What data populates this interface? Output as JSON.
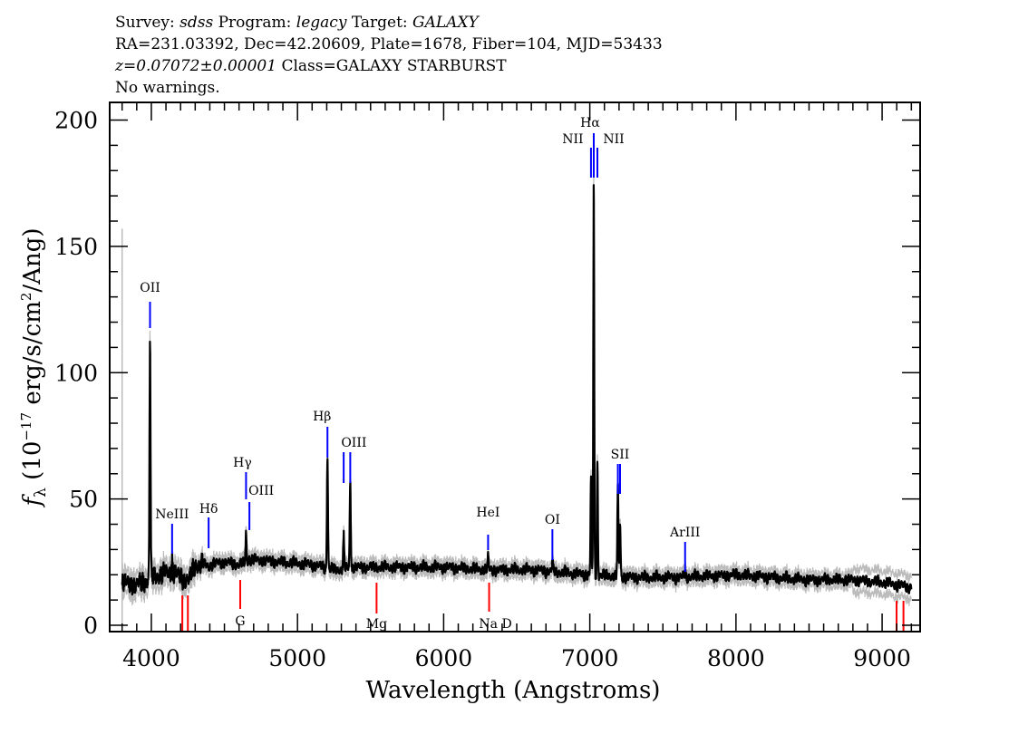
{
  "header": {
    "line1": {
      "survey_label": "Survey: ",
      "survey": "sdss",
      "program_label": " Program: ",
      "program": "legacy",
      "target_label": " Target: ",
      "target": "GALAXY"
    },
    "line2": "RA=231.03392, Dec=42.20609, Plate=1678, Fiber=104, MJD=53433",
    "line3": {
      "redshift": "z=0.07072±0.00001",
      "class": " Class=GALAXY STARBURST"
    },
    "line4": "No warnings."
  },
  "chart_data": {
    "type": "line",
    "xlabel": "Wavelength (Angstroms)",
    "ylabel": "f_λ (10^-17 erg/s/cm^2/Ang)",
    "ylabel_parts": {
      "f": "f",
      "sub": "λ",
      "pre": " (10",
      "exp1": "−17",
      "mid": " erg/s/cm",
      "exp2": "2",
      "post": "/Ang)"
    },
    "xlim": [
      3715,
      9260
    ],
    "ylim": [
      -2.5,
      207
    ],
    "xticks": [
      4000,
      5000,
      6000,
      7000,
      8000,
      9000
    ],
    "yticks": [
      0,
      50,
      100,
      150,
      200
    ],
    "grid": false,
    "colors": {
      "flux": "#000000",
      "error": "#bbbbbb",
      "emission_marker": "#0000ff",
      "absorption_marker": "#ff0000"
    },
    "continuum": [
      [
        3800,
        17
      ],
      [
        3900,
        16
      ],
      [
        3980,
        18
      ],
      [
        4050,
        20
      ],
      [
        4150,
        21
      ],
      [
        4200,
        19
      ],
      [
        4260,
        18
      ],
      [
        4300,
        24
      ],
      [
        4400,
        24
      ],
      [
        4500,
        25
      ],
      [
        4600,
        24
      ],
      [
        4700,
        26
      ],
      [
        4900,
        25
      ],
      [
        5100,
        24
      ],
      [
        5250,
        22
      ],
      [
        5400,
        23
      ],
      [
        5600,
        23
      ],
      [
        6000,
        23
      ],
      [
        6300,
        22
      ],
      [
        6600,
        22
      ],
      [
        7000,
        20
      ],
      [
        7300,
        19
      ],
      [
        7600,
        19
      ],
      [
        8000,
        20
      ],
      [
        8500,
        18
      ],
      [
        8800,
        18
      ],
      [
        9000,
        17
      ],
      [
        9200,
        15
      ]
    ],
    "emission_peaks": [
      [
        3991,
        112
      ],
      [
        4142,
        26
      ],
      [
        4392,
        23
      ],
      [
        4648,
        36
      ],
      [
        4671,
        27
      ],
      [
        5205,
        68
      ],
      [
        5316,
        35
      ],
      [
        5361,
        57
      ],
      [
        6304,
        27
      ],
      [
        6744,
        25
      ],
      [
        7008,
        58
      ],
      [
        7027,
        175
      ],
      [
        7052,
        65
      ],
      [
        7192,
        55
      ],
      [
        7207,
        40
      ],
      [
        7652,
        21
      ]
    ],
    "error_spike": [
      3800,
      157
    ],
    "emission_lines": [
      {
        "label": "OII",
        "wavelength": 3991
      },
      {
        "label": "NeIII",
        "wavelength": 4142
      },
      {
        "label": "Hδ",
        "wavelength": 4392
      },
      {
        "label": "Hγ",
        "wavelength": 4648
      },
      {
        "label": "OIII",
        "wavelength": 4671
      },
      {
        "label": "Hβ",
        "wavelength": 5205
      },
      {
        "label": "",
        "wavelength": 5316
      },
      {
        "label": "OIII",
        "wavelength": 5361
      },
      {
        "label": "HeI",
        "wavelength": 6304
      },
      {
        "label": "OI",
        "wavelength": 6744
      },
      {
        "label": "NII",
        "wavelength": 7008
      },
      {
        "label": "Hα",
        "wavelength": 7027
      },
      {
        "label": "NII",
        "wavelength": 7052
      },
      {
        "label": "",
        "wavelength": 7192
      },
      {
        "label": "SII",
        "wavelength": 7207
      },
      {
        "label": "ArIII",
        "wavelength": 7652
      }
    ],
    "absorption_lines": [
      {
        "label": "",
        "wavelength": 4212
      },
      {
        "label": "",
        "wavelength": 4250
      },
      {
        "label": "G",
        "wavelength": 4608
      },
      {
        "label": "Mg",
        "wavelength": 5541
      },
      {
        "label": "Na D",
        "wavelength": 6311
      },
      {
        "label": "",
        "wavelength": 9099
      },
      {
        "label": "",
        "wavelength": 9146
      }
    ]
  }
}
